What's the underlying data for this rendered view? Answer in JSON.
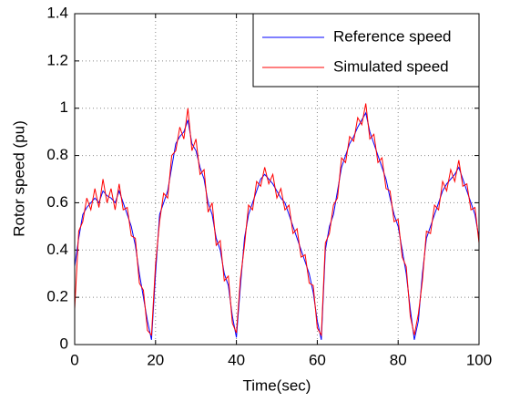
{
  "chart_data": {
    "type": "line",
    "xlabel": "Time(sec)",
    "ylabel": "Rotor speed (pu)",
    "x": [
      0,
      1,
      2,
      3,
      4,
      5,
      6,
      7,
      8,
      9,
      10,
      11,
      12,
      13,
      14,
      15,
      16,
      17,
      18,
      19,
      20,
      21,
      22,
      23,
      24,
      25,
      26,
      27,
      28,
      29,
      30,
      31,
      32,
      33,
      34,
      35,
      36,
      37,
      38,
      39,
      40,
      41,
      42,
      43,
      44,
      45,
      46,
      47,
      48,
      49,
      50,
      51,
      52,
      53,
      54,
      55,
      56,
      57,
      58,
      59,
      60,
      61,
      62,
      63,
      64,
      65,
      66,
      67,
      68,
      69,
      70,
      71,
      72,
      73,
      74,
      75,
      76,
      77,
      78,
      79,
      80,
      81,
      82,
      83,
      84,
      85,
      86,
      87,
      88,
      89,
      90,
      91,
      92,
      93,
      94,
      95,
      96,
      97,
      98,
      99,
      100
    ],
    "series": [
      {
        "name": "Reference speed",
        "color": "#0000ff",
        "values": [
          0.33,
          0.45,
          0.55,
          0.58,
          0.6,
          0.62,
          0.6,
          0.65,
          0.63,
          0.62,
          0.6,
          0.65,
          0.6,
          0.55,
          0.5,
          0.42,
          0.3,
          0.2,
          0.1,
          0.02,
          0.3,
          0.55,
          0.6,
          0.65,
          0.75,
          0.85,
          0.88,
          0.9,
          0.95,
          0.85,
          0.82,
          0.75,
          0.7,
          0.6,
          0.55,
          0.45,
          0.4,
          0.3,
          0.25,
          0.12,
          0.03,
          0.25,
          0.45,
          0.55,
          0.6,
          0.65,
          0.7,
          0.72,
          0.7,
          0.68,
          0.65,
          0.62,
          0.6,
          0.55,
          0.5,
          0.45,
          0.4,
          0.35,
          0.3,
          0.22,
          0.1,
          0.02,
          0.4,
          0.5,
          0.55,
          0.65,
          0.75,
          0.8,
          0.85,
          0.88,
          0.92,
          0.95,
          0.98,
          0.9,
          0.85,
          0.8,
          0.75,
          0.7,
          0.62,
          0.55,
          0.5,
          0.4,
          0.3,
          0.15,
          0.02,
          0.1,
          0.3,
          0.45,
          0.5,
          0.55,
          0.6,
          0.65,
          0.68,
          0.7,
          0.72,
          0.75,
          0.7,
          0.65,
          0.6,
          0.55,
          0.45
        ]
      },
      {
        "name": "Simulated speed",
        "color": "#ff0000",
        "values": [
          0.15,
          0.48,
          0.52,
          0.62,
          0.57,
          0.66,
          0.58,
          0.7,
          0.6,
          0.66,
          0.57,
          0.68,
          0.57,
          0.58,
          0.46,
          0.45,
          0.26,
          0.23,
          0.06,
          0.04,
          0.34,
          0.52,
          0.64,
          0.62,
          0.8,
          0.82,
          0.92,
          0.87,
          1.0,
          0.82,
          0.87,
          0.72,
          0.74,
          0.56,
          0.6,
          0.42,
          0.44,
          0.27,
          0.29,
          0.09,
          0.05,
          0.28,
          0.42,
          0.59,
          0.57,
          0.69,
          0.67,
          0.75,
          0.68,
          0.72,
          0.62,
          0.66,
          0.57,
          0.59,
          0.47,
          0.49,
          0.37,
          0.38,
          0.26,
          0.25,
          0.07,
          0.04,
          0.43,
          0.47,
          0.59,
          0.62,
          0.79,
          0.77,
          0.88,
          0.86,
          0.96,
          0.93,
          1.02,
          0.87,
          0.89,
          0.77,
          0.79,
          0.66,
          0.65,
          0.52,
          0.53,
          0.37,
          0.33,
          0.12,
          0.04,
          0.13,
          0.27,
          0.48,
          0.47,
          0.59,
          0.57,
          0.69,
          0.65,
          0.74,
          0.69,
          0.78,
          0.67,
          0.68,
          0.57,
          0.58,
          0.43
        ]
      }
    ],
    "xlim": [
      0,
      100
    ],
    "xticks": [
      0,
      20,
      40,
      60,
      80,
      100
    ],
    "ylim": [
      0,
      1.4
    ],
    "yticks": [
      0,
      0.2,
      0.4,
      0.6,
      0.8,
      1,
      1.2,
      1.4
    ],
    "grid": true,
    "legend": "upper right"
  }
}
